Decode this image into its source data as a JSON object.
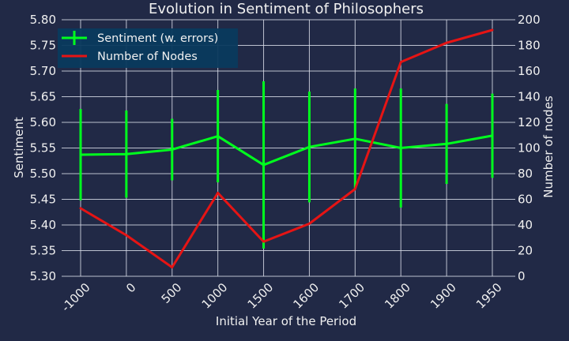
{
  "chart_data": {
    "type": "line",
    "title": "Evolution in Sentiment of Philosophers",
    "xlabel": "Initial Year of the Period",
    "ylabel_left": "Sentiment",
    "ylabel_right": "Number of nodes",
    "categories": [
      "-1000",
      "0",
      "500",
      "1000",
      "1500",
      "1600",
      "1700",
      "1800",
      "1900",
      "1950"
    ],
    "ylim_left": [
      5.3,
      5.8
    ],
    "yticks_left": [
      "5.30",
      "5.35",
      "5.40",
      "5.45",
      "5.50",
      "5.55",
      "5.60",
      "5.65",
      "5.70",
      "5.75",
      "5.80"
    ],
    "ylim_right": [
      0,
      200
    ],
    "yticks_right": [
      "0",
      "20",
      "40",
      "60",
      "80",
      "100",
      "120",
      "140",
      "160",
      "180",
      "200"
    ],
    "grid": true,
    "legend_position": "top-left",
    "series": [
      {
        "name": "Sentiment (w. errors)",
        "axis": "left",
        "color": "#00FF1E",
        "values": [
          5.537,
          5.538,
          5.547,
          5.573,
          5.517,
          5.552,
          5.568,
          5.55,
          5.558,
          5.574
        ],
        "errors": [
          0.089,
          0.085,
          0.06,
          0.09,
          0.163,
          0.108,
          0.098,
          0.116,
          0.078,
          0.082
        ]
      },
      {
        "name": "Number of Nodes",
        "axis": "right",
        "color": "#E61414",
        "values": [
          53,
          32,
          7,
          65,
          27,
          41,
          68,
          167,
          182,
          192
        ]
      }
    ]
  },
  "colors": {
    "background": "#212946",
    "grid": "#D8DCE8",
    "text": "#F0F0F0",
    "legend_bg": "#0A3A5E"
  }
}
